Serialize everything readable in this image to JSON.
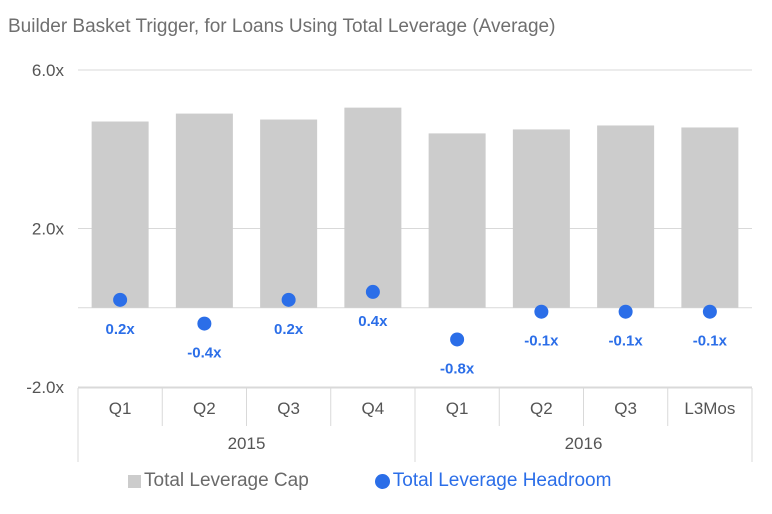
{
  "chart_data": {
    "type": "bar",
    "title": "Builder Basket Trigger, for Loans Using Total Leverage (Average)",
    "categories": [
      "Q1",
      "Q2",
      "Q3",
      "Q4",
      "Q1",
      "Q2",
      "Q3",
      "L3Mos"
    ],
    "groups": [
      {
        "label": "2015",
        "span": [
          0,
          3
        ]
      },
      {
        "label": "2016",
        "span": [
          4,
          7
        ]
      }
    ],
    "series": [
      {
        "name": "Total Leverage Cap",
        "type": "bar",
        "color": "#cccccc",
        "values": [
          4.7,
          4.9,
          4.75,
          5.05,
          4.4,
          4.5,
          4.6,
          4.55
        ]
      },
      {
        "name": "Total Leverage Headroom",
        "type": "scatter",
        "color": "#2b6ee8",
        "values": [
          0.2,
          -0.4,
          0.2,
          0.4,
          -0.8,
          -0.1,
          -0.1,
          -0.1
        ],
        "labels": [
          "0.2x",
          "-0.4x",
          "0.2x",
          "0.4x",
          "-0.8x",
          "-0.1x",
          "-0.1x",
          "-0.1x"
        ]
      }
    ],
    "yaxis": {
      "ticks": [
        6.0,
        2.0,
        -2.0
      ],
      "tick_labels": [
        "6.0x",
        "2.0x",
        "-2.0x"
      ],
      "ylim": [
        -2.0,
        6.0
      ]
    },
    "grid": true,
    "legend_position": "bottom"
  }
}
